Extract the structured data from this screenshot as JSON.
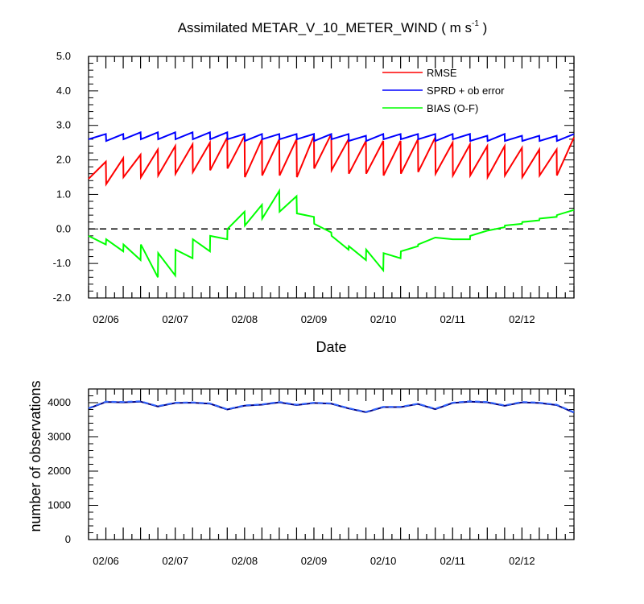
{
  "title": {
    "main": "Assimilated METAR_V_10_METER_WIND ( m s",
    "sup": "-1",
    "tail": " )"
  },
  "chart_data": [
    {
      "type": "line",
      "title": "Assimilated METAR_V_10_METER_WIND ( m s-1 )",
      "xlabel": "Date",
      "ylabel": "",
      "xlim": [
        0,
        84
      ],
      "ylim": [
        -2.0,
        5.0
      ],
      "yticks": [
        "-2.0",
        "-1.0",
        "0.0",
        "1.0",
        "2.0",
        "3.0",
        "4.0",
        "5.0"
      ],
      "xticks": [
        {
          "x": 3,
          "label": "02/06"
        },
        {
          "x": 15,
          "label": "02/07"
        },
        {
          "x": 27,
          "label": "02/08"
        },
        {
          "x": 39,
          "label": "02/09"
        },
        {
          "x": 51,
          "label": "02/10"
        },
        {
          "x": 63,
          "label": "02/11"
        },
        {
          "x": 75,
          "label": "02/12"
        }
      ],
      "reference_line": {
        "y": 0.0,
        "style": "dashed",
        "color": "#000000"
      },
      "legend": {
        "position": "top-right",
        "entries": [
          "RMSE",
          "SPRD + ob error",
          "BIAS (O-F)"
        ]
      },
      "series": [
        {
          "name": "RMSE",
          "color": "#ff0000",
          "x": [
            0.0,
            3.0,
            3.05,
            6.0,
            6.05,
            9.0,
            9.05,
            12.0,
            12.05,
            15.0,
            15.05,
            18.0,
            18.05,
            21.0,
            21.05,
            24.0,
            24.05,
            27.0,
            27.05,
            30.0,
            30.05,
            33.0,
            33.05,
            36.0,
            36.05,
            39.0,
            39.05,
            42.0,
            42.05,
            45.0,
            45.05,
            48.0,
            48.05,
            51.0,
            51.05,
            54.0,
            54.05,
            57.0,
            57.05,
            60.0,
            60.05,
            63.0,
            63.05,
            66.0,
            66.05,
            69.0,
            69.05,
            72.0,
            72.05,
            75.0,
            75.05,
            78.0,
            78.05,
            81.0,
            81.05,
            84.0
          ],
          "y": [
            1.45,
            1.95,
            1.3,
            2.05,
            1.5,
            2.15,
            1.5,
            2.3,
            1.55,
            2.4,
            1.6,
            2.45,
            1.65,
            2.5,
            1.7,
            2.65,
            1.75,
            2.7,
            1.5,
            2.6,
            1.55,
            2.6,
            1.55,
            2.6,
            1.5,
            2.7,
            1.75,
            2.75,
            1.7,
            2.6,
            1.6,
            2.55,
            1.6,
            2.55,
            1.55,
            2.55,
            1.6,
            2.6,
            1.65,
            2.65,
            1.6,
            2.5,
            1.55,
            2.45,
            1.55,
            2.4,
            1.5,
            2.4,
            1.55,
            2.35,
            1.5,
            2.3,
            1.55,
            2.3,
            1.55,
            2.65
          ]
        },
        {
          "name": "SPRD + ob error",
          "color": "#0000ff",
          "x": [
            0.0,
            3.0,
            3.05,
            6.0,
            6.05,
            9.0,
            9.05,
            12.0,
            12.05,
            15.0,
            15.05,
            18.0,
            18.05,
            21.0,
            21.05,
            24.0,
            24.05,
            27.0,
            27.05,
            30.0,
            30.05,
            33.0,
            33.05,
            36.0,
            36.05,
            39.0,
            39.05,
            42.0,
            42.05,
            45.0,
            45.05,
            48.0,
            48.05,
            51.0,
            51.05,
            54.0,
            54.05,
            57.0,
            57.05,
            60.0,
            60.05,
            63.0,
            63.05,
            66.0,
            66.05,
            69.0,
            69.05,
            72.0,
            72.05,
            75.0,
            75.05,
            78.0,
            78.05,
            81.0,
            81.05,
            84.0
          ],
          "y": [
            2.6,
            2.75,
            2.55,
            2.75,
            2.6,
            2.8,
            2.6,
            2.8,
            2.6,
            2.8,
            2.6,
            2.8,
            2.6,
            2.8,
            2.6,
            2.8,
            2.6,
            2.75,
            2.55,
            2.75,
            2.6,
            2.75,
            2.6,
            2.75,
            2.6,
            2.75,
            2.55,
            2.75,
            2.6,
            2.75,
            2.55,
            2.7,
            2.55,
            2.75,
            2.6,
            2.75,
            2.6,
            2.75,
            2.6,
            2.75,
            2.55,
            2.75,
            2.6,
            2.75,
            2.55,
            2.7,
            2.55,
            2.75,
            2.55,
            2.7,
            2.55,
            2.7,
            2.55,
            2.7,
            2.55,
            2.75
          ]
        },
        {
          "name": "BIAS (O-F)",
          "color": "#00ff00",
          "x": [
            0,
            3,
            3.05,
            6,
            6.05,
            9,
            9.05,
            12,
            12.05,
            15,
            15.05,
            18,
            18.05,
            21,
            21.05,
            24,
            24.05,
            27,
            27.05,
            30,
            30.05,
            33,
            33.05,
            36,
            36.05,
            39,
            39.05,
            42,
            42.05,
            45,
            45.05,
            48,
            48.05,
            51,
            51.05,
            54,
            54.05,
            57,
            57.05,
            60,
            60.05,
            63,
            63.05,
            66,
            66.05,
            69,
            69.05,
            72,
            72.05,
            75,
            75.05,
            78,
            78.05,
            81,
            81.05,
            84
          ],
          "y": [
            -0.2,
            -0.45,
            -0.3,
            -0.65,
            -0.45,
            -0.9,
            -0.45,
            -1.4,
            -0.7,
            -1.35,
            -0.6,
            -0.85,
            -0.3,
            -0.65,
            -0.2,
            -0.3,
            0.0,
            0.5,
            0.1,
            0.7,
            0.3,
            1.1,
            0.5,
            0.95,
            0.45,
            0.35,
            0.15,
            -0.1,
            -0.2,
            -0.6,
            -0.5,
            -0.9,
            -0.6,
            -1.2,
            -0.7,
            -0.85,
            -0.65,
            -0.5,
            -0.45,
            -0.25,
            -0.25,
            -0.3,
            -0.3,
            -0.3,
            -0.2,
            -0.05,
            -0.05,
            0.05,
            0.1,
            0.15,
            0.2,
            0.25,
            0.3,
            0.35,
            0.4,
            0.55
          ]
        }
      ]
    },
    {
      "type": "line",
      "xlabel": "",
      "ylabel": "number of observations",
      "xlim": [
        0,
        84
      ],
      "ylim": [
        0,
        4400
      ],
      "yticks": [
        "0",
        "1000",
        "2000",
        "3000",
        "4000"
      ],
      "xticks": [
        {
          "x": 3,
          "label": "02/06"
        },
        {
          "x": 15,
          "label": "02/07"
        },
        {
          "x": 27,
          "label": "02/08"
        },
        {
          "x": 39,
          "label": "02/09"
        },
        {
          "x": 51,
          "label": "02/10"
        },
        {
          "x": 63,
          "label": "02/11"
        },
        {
          "x": 75,
          "label": "02/12"
        }
      ],
      "series": [
        {
          "name": "",
          "color": "#000080",
          "dash": "none",
          "x": [
            0,
            3,
            6,
            9,
            12,
            15,
            18,
            21,
            24,
            27,
            30,
            33,
            36,
            39,
            42,
            45,
            48,
            51,
            54,
            57,
            60,
            63,
            66,
            69,
            72,
            75,
            78,
            81,
            84
          ],
          "y": [
            3830,
            4020,
            4010,
            4030,
            3890,
            3990,
            4000,
            3970,
            3800,
            3910,
            3940,
            4010,
            3930,
            3990,
            3970,
            3830,
            3720,
            3870,
            3870,
            3960,
            3810,
            3990,
            4030,
            4010,
            3910,
            4010,
            3990,
            3930,
            3710
          ]
        },
        {
          "name": "",
          "color": "#3366ff",
          "dash": "dashed",
          "x": [
            0,
            3,
            6,
            9,
            12,
            15,
            18,
            21,
            24,
            27,
            30,
            33,
            36,
            39,
            42,
            45,
            48,
            51,
            54,
            57,
            60,
            63,
            66,
            69,
            72,
            75,
            78,
            81,
            84
          ],
          "y": [
            3840,
            4030,
            4020,
            4040,
            3900,
            4000,
            4010,
            3980,
            3810,
            3920,
            3950,
            4020,
            3940,
            4000,
            3980,
            3840,
            3730,
            3880,
            3880,
            3970,
            3820,
            4000,
            4040,
            4020,
            3920,
            4020,
            4000,
            3940,
            3720
          ]
        }
      ]
    }
  ]
}
